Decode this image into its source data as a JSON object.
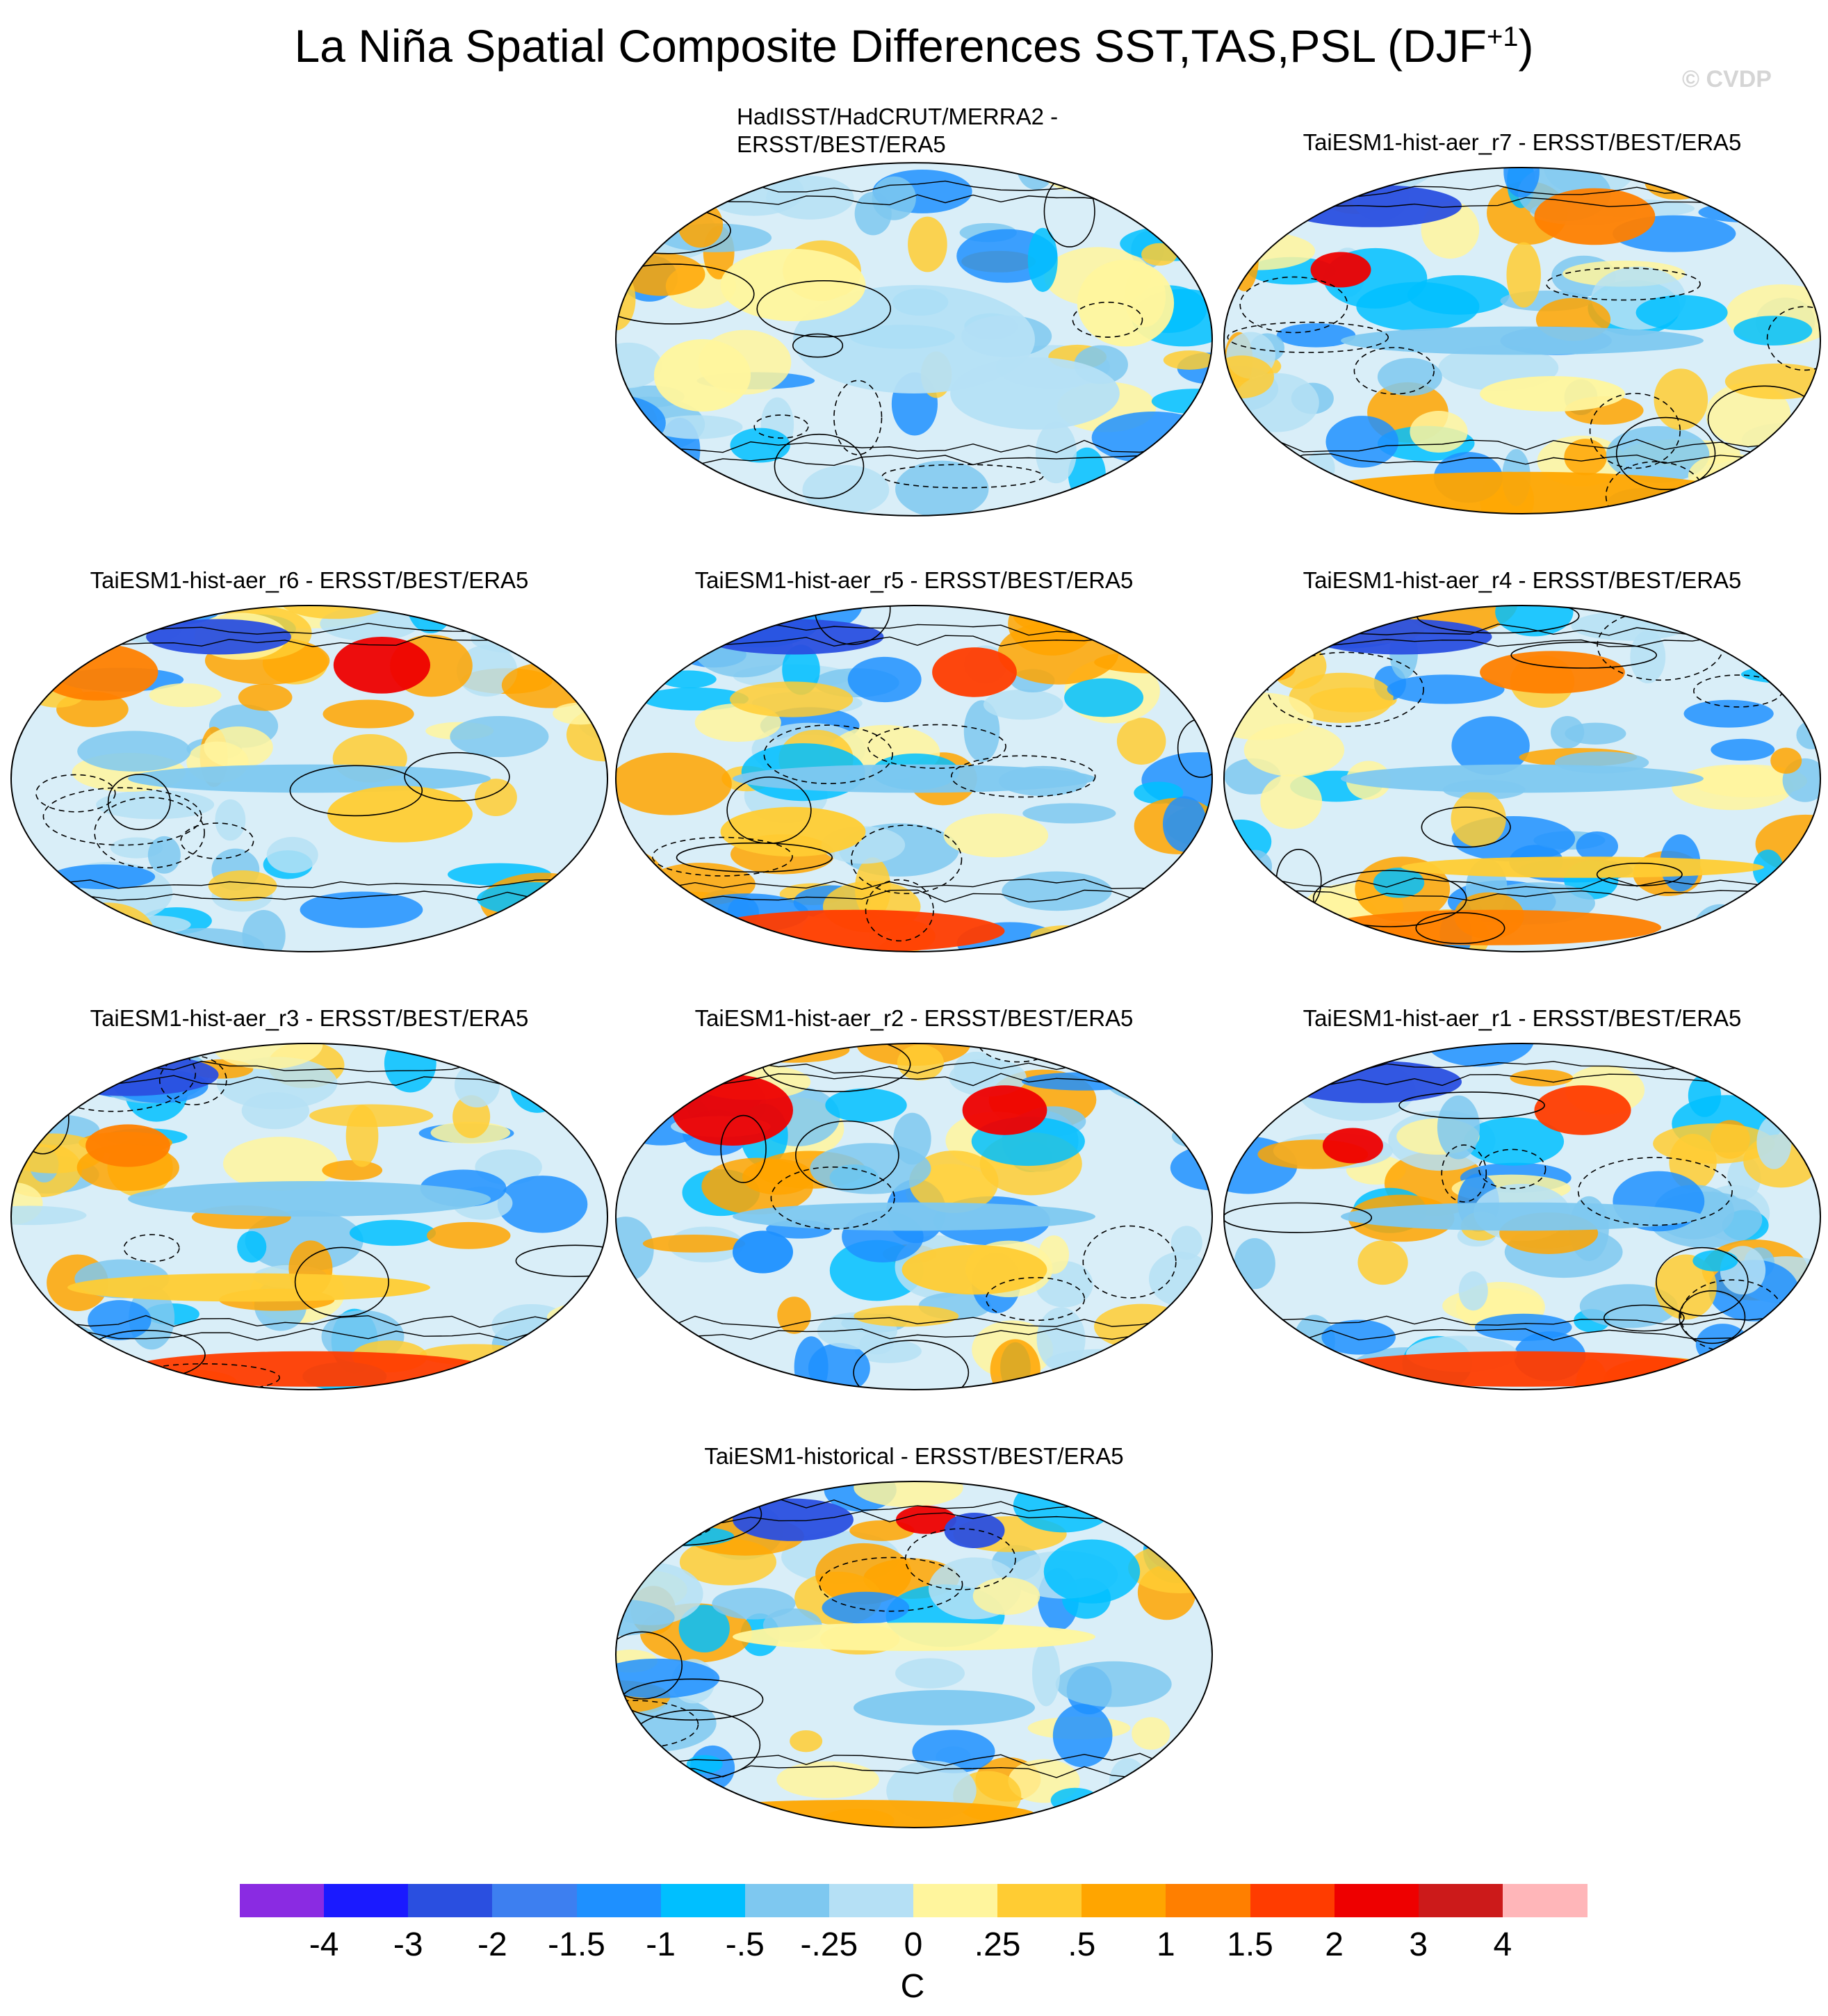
{
  "title_main": "La Niña Spatial Composite Differences SST,TAS,PSL (DJF",
  "title_sup": "+1",
  "title_close": ")",
  "watermark": "© CVDP",
  "panels": [
    {
      "title_line1": "HadISST/HadCRUT/MERRA2 -",
      "title_line2": "ERSST/BEST/ERA5",
      "pattern": "obs"
    },
    {
      "title": "TaiESM1-hist-aer_r7 - ERSST/BEST/ERA5",
      "pattern": "r7"
    },
    {
      "title": "TaiESM1-hist-aer_r6 - ERSST/BEST/ERA5",
      "pattern": "r6"
    },
    {
      "title": "TaiESM1-hist-aer_r5 - ERSST/BEST/ERA5",
      "pattern": "r5"
    },
    {
      "title": "TaiESM1-hist-aer_r4 - ERSST/BEST/ERA5",
      "pattern": "r4"
    },
    {
      "title": "TaiESM1-hist-aer_r3 - ERSST/BEST/ERA5",
      "pattern": "r3"
    },
    {
      "title": "TaiESM1-hist-aer_r2 - ERSST/BEST/ERA5",
      "pattern": "r2"
    },
    {
      "title": "TaiESM1-hist-aer_r1 - ERSST/BEST/ERA5",
      "pattern": "r1"
    },
    {
      "title": "TaiESM1-historical - ERSST/BEST/ERA5",
      "pattern": "hist"
    }
  ],
  "colorbar": {
    "colors": [
      "#8a2be2",
      "#1a1aff",
      "#2a4fe0",
      "#3d7ff0",
      "#1e90ff",
      "#00bfff",
      "#7ec8f0",
      "#b5e0f5",
      "#fff59d",
      "#ffcc33",
      "#ffa500",
      "#ff7f00",
      "#ff3c00",
      "#ee0000",
      "#cc1a1a",
      "#ffb6b9"
    ],
    "labels": [
      "-4",
      "-3",
      "-2",
      "-1.5",
      "-1",
      "-.5",
      "-.25",
      "0",
      ".25",
      ".5",
      "1",
      "1.5",
      "2",
      "3",
      "4"
    ],
    "units": "C"
  }
}
